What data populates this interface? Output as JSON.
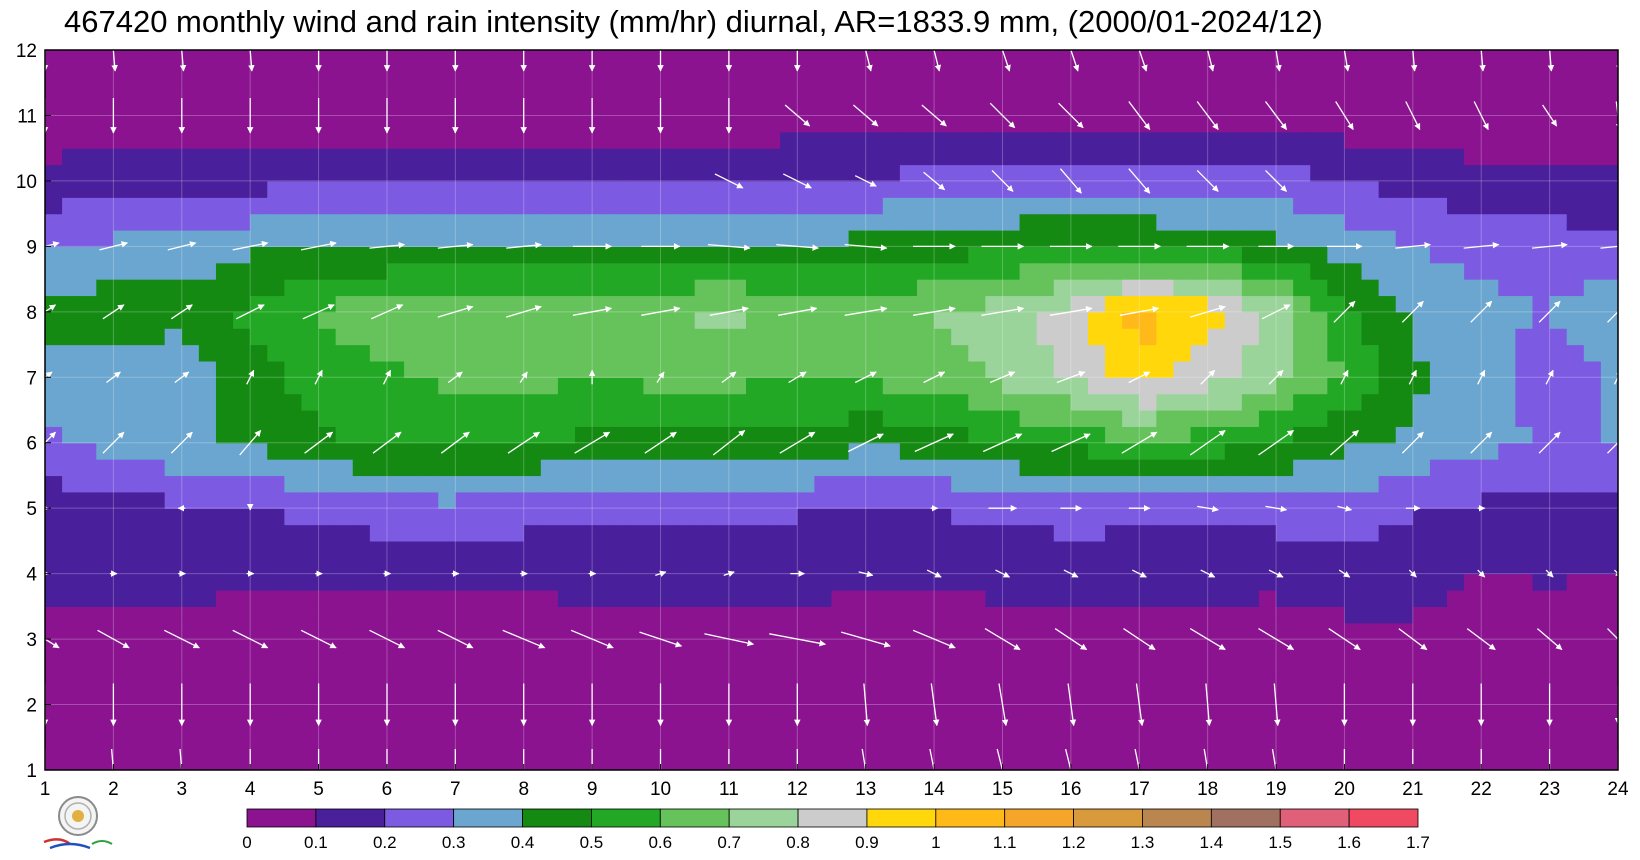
{
  "chart_data": {
    "type": "heatmap",
    "title": "467420 monthly wind and rain intensity (mm/hr) diurnal, AR=1833.9 mm, (2000/01-2024/12)",
    "xlabel": "",
    "ylabel": "",
    "x_ticks": [
      "1",
      "2",
      "3",
      "4",
      "5",
      "6",
      "7",
      "8",
      "9",
      "10",
      "11",
      "12",
      "13",
      "14",
      "15",
      "16",
      "17",
      "18",
      "19",
      "20",
      "21",
      "22",
      "23",
      "24"
    ],
    "y_ticks": [
      "1",
      "2",
      "3",
      "4",
      "5",
      "6",
      "7",
      "8",
      "9",
      "10",
      "11",
      "12"
    ],
    "xlim": [
      1,
      24
    ],
    "ylim": [
      1,
      12
    ],
    "grid": true,
    "legend": "bottom colorbar",
    "colorbar": {
      "levels": [
        "0",
        "0.1",
        "0.2",
        "0.3",
        "0.4",
        "0.5",
        "0.6",
        "0.7",
        "0.8",
        "0.9",
        "1",
        "1.1",
        "1.2",
        "1.3",
        "1.4",
        "1.5",
        "1.6",
        "1.7"
      ],
      "colors": [
        "#8b1390",
        "#4a1f9c",
        "#7c5ae2",
        "#6aa6cf",
        "#148a12",
        "#22a824",
        "#66c35c",
        "#9ad49a",
        "#cccccc",
        "#ffd70a",
        "#ffba1a",
        "#f5a52a",
        "#d99a3c",
        "#b8864e",
        "#a07060",
        "#e0607a",
        "#f04a62",
        "#d8283e"
      ]
    },
    "contour_line_color": "#f5a623",
    "columns_hours": [
      1,
      2,
      3,
      4,
      5,
      6,
      7,
      8,
      9,
      10,
      11,
      12,
      13,
      14,
      15,
      16,
      17,
      18,
      19,
      20,
      21,
      22,
      23,
      24
    ],
    "rows_months": [
      1,
      2,
      3,
      4,
      5,
      6,
      7,
      8,
      9,
      10,
      11,
      12
    ],
    "rain_intensity": [
      [
        0.02,
        0.02,
        0.02,
        0.02,
        0.02,
        0.02,
        0.02,
        0.02,
        0.02,
        0.02,
        0.02,
        0.02,
        0.02,
        0.02,
        0.02,
        0.02,
        0.02,
        0.02,
        0.02,
        0.02,
        0.02,
        0.02,
        0.02,
        0.02
      ],
      [
        0.03,
        0.03,
        0.03,
        0.03,
        0.03,
        0.03,
        0.03,
        0.03,
        0.03,
        0.03,
        0.03,
        0.03,
        0.03,
        0.03,
        0.03,
        0.03,
        0.03,
        0.03,
        0.03,
        0.03,
        0.03,
        0.03,
        0.03,
        0.03
      ],
      [
        0.06,
        0.06,
        0.06,
        0.06,
        0.05,
        0.05,
        0.05,
        0.05,
        0.06,
        0.06,
        0.06,
        0.06,
        0.06,
        0.06,
        0.06,
        0.06,
        0.06,
        0.06,
        0.06,
        0.07,
        0.07,
        0.07,
        0.07,
        0.07
      ],
      [
        0.13,
        0.13,
        0.13,
        0.12,
        0.11,
        0.11,
        0.11,
        0.12,
        0.13,
        0.13,
        0.14,
        0.13,
        0.12,
        0.11,
        0.13,
        0.14,
        0.14,
        0.14,
        0.12,
        0.15,
        0.15,
        0.09,
        0.11,
        0.09
      ],
      [
        0.14,
        0.16,
        0.18,
        0.2,
        0.23,
        0.26,
        0.27,
        0.25,
        0.22,
        0.21,
        0.21,
        0.21,
        0.2,
        0.21,
        0.22,
        0.24,
        0.23,
        0.22,
        0.25,
        0.27,
        0.2,
        0.18,
        0.17,
        0.16
      ],
      [
        0.28,
        0.33,
        0.38,
        0.42,
        0.48,
        0.51,
        0.52,
        0.5,
        0.48,
        0.48,
        0.48,
        0.46,
        0.42,
        0.44,
        0.5,
        0.52,
        0.58,
        0.55,
        0.5,
        0.42,
        0.38,
        0.32,
        0.3,
        0.3
      ],
      [
        0.33,
        0.34,
        0.32,
        0.45,
        0.55,
        0.58,
        0.63,
        0.62,
        0.61,
        0.62,
        0.62,
        0.6,
        0.62,
        0.65,
        0.72,
        0.82,
        0.95,
        0.85,
        0.72,
        0.6,
        0.42,
        0.35,
        0.22,
        0.32
      ],
      [
        0.45,
        0.45,
        0.44,
        0.52,
        0.62,
        0.65,
        0.66,
        0.7,
        0.68,
        0.7,
        0.72,
        0.66,
        0.64,
        0.7,
        0.75,
        0.85,
        1.05,
        0.95,
        0.78,
        0.52,
        0.38,
        0.34,
        0.3,
        0.38
      ],
      [
        0.3,
        0.32,
        0.34,
        0.38,
        0.4,
        0.41,
        0.42,
        0.41,
        0.42,
        0.42,
        0.42,
        0.42,
        0.43,
        0.46,
        0.48,
        0.52,
        0.5,
        0.46,
        0.42,
        0.35,
        0.3,
        0.26,
        0.25,
        0.22
      ],
      [
        0.13,
        0.15,
        0.16,
        0.17,
        0.18,
        0.18,
        0.18,
        0.17,
        0.17,
        0.18,
        0.18,
        0.19,
        0.21,
        0.23,
        0.25,
        0.27,
        0.26,
        0.25,
        0.24,
        0.2,
        0.17,
        0.13,
        0.13,
        0.12
      ],
      [
        0.04,
        0.04,
        0.04,
        0.04,
        0.04,
        0.04,
        0.04,
        0.04,
        0.04,
        0.04,
        0.04,
        0.05,
        0.05,
        0.05,
        0.05,
        0.05,
        0.05,
        0.05,
        0.05,
        0.04,
        0.04,
        0.04,
        0.04,
        0.04
      ],
      [
        0.02,
        0.02,
        0.02,
        0.02,
        0.02,
        0.02,
        0.02,
        0.02,
        0.02,
        0.02,
        0.02,
        0.02,
        0.02,
        0.02,
        0.02,
        0.02,
        0.02,
        0.02,
        0.02,
        0.02,
        0.02,
        0.02,
        0.02,
        0.02
      ]
    ],
    "wind_vectors_u": [
      [
        0,
        0.05,
        0.05,
        0,
        0,
        0,
        0,
        0,
        0,
        0,
        0,
        0,
        0.1,
        0.12,
        0.15,
        0.15,
        0.12,
        0.1,
        0.1,
        0,
        0,
        0,
        0,
        0
      ],
      [
        0,
        0,
        0,
        0,
        0,
        0,
        0,
        0,
        0,
        0,
        0,
        0,
        0.05,
        0.08,
        0.1,
        0.08,
        0.08,
        0.05,
        0.05,
        0,
        0,
        0,
        0,
        0
      ],
      [
        0.4,
        0.45,
        0.5,
        0.5,
        0.5,
        0.5,
        0.5,
        0.6,
        0.6,
        0.6,
        0.7,
        0.8,
        0.7,
        0.6,
        0.5,
        0.45,
        0.45,
        0.5,
        0.5,
        0.45,
        0.4,
        0.4,
        0.35,
        0.3
      ],
      [
        0.1,
        0.1,
        0.1,
        0.1,
        0.1,
        0.1,
        0.1,
        0.1,
        0.1,
        0.15,
        0.15,
        0.2,
        0.2,
        0.2,
        0.2,
        0.2,
        0.2,
        0.2,
        0.2,
        0.15,
        0.1,
        0.1,
        0.1,
        0.1
      ],
      [
        0.1,
        0,
        -0.1,
        0,
        0,
        0,
        0,
        0,
        0,
        0,
        0,
        0,
        0,
        0.1,
        0.4,
        0.3,
        0.3,
        0.3,
        0.3,
        0.2,
        0.2,
        0.1,
        0,
        0
      ],
      [
        0.3,
        0.3,
        0.3,
        0.3,
        0.4,
        0.4,
        0.4,
        0.45,
        0.5,
        0.45,
        0.45,
        0.5,
        0.5,
        0.55,
        0.55,
        0.55,
        0.5,
        0.5,
        0.5,
        0.4,
        0.3,
        0.3,
        0.3,
        0.3
      ],
      [
        0.2,
        0.2,
        0.2,
        0.1,
        0.1,
        0.1,
        0.2,
        0.1,
        0,
        0.1,
        0.2,
        0.25,
        0.3,
        0.3,
        0.35,
        0.4,
        0.3,
        0.2,
        0.2,
        0.1,
        0.1,
        0.1,
        0.1,
        0.1
      ],
      [
        0.3,
        0.3,
        0.3,
        0.4,
        0.45,
        0.45,
        0.5,
        0.5,
        0.55,
        0.55,
        0.55,
        0.55,
        0.6,
        0.6,
        0.6,
        0.6,
        0.55,
        0.5,
        0.4,
        0.3,
        0.3,
        0.3,
        0.3,
        0.3
      ],
      [
        0.4,
        0.4,
        0.4,
        0.5,
        0.5,
        0.5,
        0.5,
        0.5,
        0.55,
        0.55,
        0.6,
        0.6,
        0.6,
        0.6,
        0.6,
        0.6,
        0.6,
        0.6,
        0.5,
        0.5,
        0.5,
        0.5,
        0.5,
        0.5
      ],
      [
        0,
        0,
        0,
        0,
        0,
        0,
        0,
        0,
        0,
        0,
        0.4,
        0.4,
        0.3,
        0.3,
        0.3,
        0.3,
        0.3,
        0.3,
        0.3,
        0,
        0,
        0,
        0,
        0
      ],
      [
        0,
        0,
        0,
        0,
        0,
        0,
        0,
        0,
        0,
        0,
        0,
        0.35,
        0.35,
        0.35,
        0.35,
        0.35,
        0.3,
        0.3,
        0.3,
        0.25,
        0.2,
        0.2,
        0.2,
        0.05
      ],
      [
        0,
        0.05,
        0.05,
        0.05,
        0,
        0,
        0,
        0,
        0,
        0,
        0,
        0,
        0.15,
        0.15,
        0.2,
        0.2,
        0.2,
        0.15,
        0.1,
        0.1,
        0.05,
        0.05,
        0.05,
        0.05
      ]
    ],
    "wind_vectors_v": [
      [
        -0.6,
        -0.6,
        -0.6,
        -0.6,
        -0.6,
        -0.6,
        -0.6,
        -0.6,
        -0.6,
        -0.6,
        -0.6,
        -0.6,
        -0.6,
        -0.6,
        -0.6,
        -0.6,
        -0.6,
        -0.6,
        -0.6,
        -0.6,
        -0.6,
        -0.6,
        -0.6,
        -0.55
      ],
      [
        -0.6,
        -0.6,
        -0.6,
        -0.6,
        -0.6,
        -0.6,
        -0.6,
        -0.6,
        -0.6,
        -0.6,
        -0.6,
        -0.6,
        -0.6,
        -0.6,
        -0.6,
        -0.6,
        -0.6,
        -0.6,
        -0.6,
        -0.6,
        -0.6,
        -0.6,
        -0.6,
        -0.55
      ],
      [
        -0.25,
        -0.25,
        -0.25,
        -0.25,
        -0.25,
        -0.25,
        -0.25,
        -0.25,
        -0.25,
        -0.2,
        -0.15,
        -0.15,
        -0.2,
        -0.25,
        -0.3,
        -0.3,
        -0.3,
        -0.3,
        -0.3,
        -0.3,
        -0.3,
        -0.3,
        -0.3,
        -0.3
      ],
      [
        0,
        0,
        0,
        0,
        0,
        0,
        0,
        0,
        0,
        0.05,
        0.05,
        0,
        -0.05,
        -0.1,
        -0.1,
        -0.1,
        -0.1,
        -0.1,
        -0.1,
        -0.1,
        -0.1,
        -0.1,
        -0.1,
        -0.1
      ],
      [
        0,
        0,
        0,
        -0.05,
        0,
        0,
        0,
        0,
        0,
        0,
        0,
        0,
        0,
        0,
        0,
        0,
        0,
        -0.05,
        -0.05,
        -0.05,
        0,
        0,
        0,
        0
      ],
      [
        0.3,
        0.3,
        0.3,
        0.35,
        0.3,
        0.3,
        0.3,
        0.3,
        0.3,
        0.3,
        0.35,
        0.3,
        0.25,
        0.25,
        0.25,
        0.25,
        0.3,
        0.35,
        0.35,
        0.35,
        0.3,
        0.3,
        0.3,
        0.3
      ],
      [
        0.15,
        0.15,
        0.15,
        0.2,
        0.2,
        0.2,
        0.15,
        0.15,
        0.2,
        0.15,
        0.15,
        0.15,
        0.15,
        0.15,
        0.15,
        0.15,
        0.15,
        0.2,
        0.2,
        0.2,
        0.2,
        0.2,
        0.2,
        0.2
      ],
      [
        0.2,
        0.2,
        0.2,
        0.2,
        0.2,
        0.2,
        0.15,
        0.15,
        0.1,
        0.1,
        0.1,
        0.1,
        0.1,
        0.1,
        0.1,
        0.1,
        0.1,
        0.15,
        0.2,
        0.3,
        0.3,
        0.3,
        0.3,
        0.3
      ],
      [
        0.1,
        0.1,
        0.1,
        0.1,
        0.1,
        0.05,
        0.05,
        0.05,
        0,
        0,
        -0.05,
        -0.05,
        -0.05,
        0,
        0,
        0,
        0,
        0,
        0,
        0,
        0.05,
        0.05,
        0.05,
        0.05
      ],
      [
        0,
        0,
        0,
        0,
        0,
        0,
        0,
        0,
        0,
        0,
        -0.2,
        -0.2,
        -0.15,
        -0.25,
        -0.3,
        -0.35,
        -0.35,
        -0.3,
        -0.3,
        0,
        0,
        0,
        0,
        0
      ],
      [
        -0.5,
        -0.5,
        -0.5,
        -0.5,
        -0.5,
        -0.5,
        -0.5,
        -0.5,
        -0.5,
        -0.5,
        -0.5,
        -0.3,
        -0.3,
        -0.3,
        -0.35,
        -0.35,
        -0.4,
        -0.4,
        -0.4,
        -0.4,
        -0.4,
        -0.4,
        -0.3,
        -0.4
      ],
      [
        -0.6,
        -0.6,
        -0.6,
        -0.6,
        -0.6,
        -0.6,
        -0.6,
        -0.6,
        -0.6,
        -0.6,
        -0.6,
        -0.6,
        -0.6,
        -0.6,
        -0.6,
        -0.6,
        -0.6,
        -0.6,
        -0.6,
        -0.6,
        -0.6,
        -0.6,
        -0.6,
        -0.6
      ]
    ]
  }
}
